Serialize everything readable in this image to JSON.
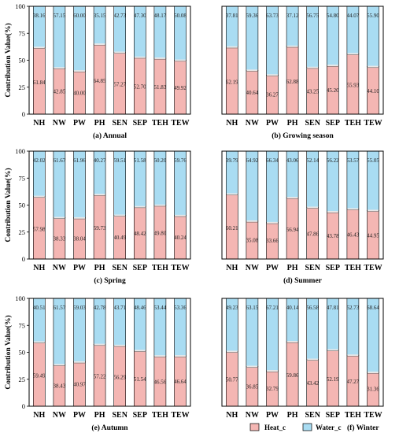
{
  "colors": {
    "heat": "#f4b6b3",
    "water": "#a9dcf2",
    "frame": "#000000",
    "seam": "#e8e8e8"
  },
  "legend": {
    "heat_label": "Heat_c",
    "water_label": "Water_c"
  },
  "chart_data": [
    {
      "type": "bar",
      "stacked": true,
      "title": "(a) Annual",
      "ylabel": "Contribution Value(%)",
      "ylim": [
        0,
        100
      ],
      "yticks": [
        0,
        25,
        50,
        75,
        100
      ],
      "categories": [
        "NH",
        "NW",
        "PW",
        "PH",
        "SEN",
        "SEP",
        "TEH",
        "TEW"
      ],
      "series": [
        {
          "name": "Heat_c",
          "values": [
            61.84,
            42.85,
            40.0,
            64.85,
            57.27,
            52.7,
            51.83,
            49.92
          ]
        },
        {
          "name": "Water_c",
          "values": [
            38.16,
            57.15,
            60.0,
            35.15,
            42.73,
            47.3,
            48.17,
            50.08
          ]
        }
      ]
    },
    {
      "type": "bar",
      "stacked": true,
      "title": "(b) Growing season",
      "ylim": [
        0,
        100
      ],
      "categories": [
        "NH",
        "NW",
        "PW",
        "PH",
        "SEN",
        "SEP",
        "TEH",
        "TEW"
      ],
      "series": [
        {
          "name": "Heat_c",
          "values": [
            62.19,
            40.64,
            36.27,
            62.88,
            43.25,
            45.2,
            55.93,
            44.1
          ]
        },
        {
          "name": "Water_c",
          "values": [
            37.81,
            59.36,
            63.73,
            37.12,
            56.75,
            54.8,
            44.07,
            55.9
          ]
        }
      ]
    },
    {
      "type": "bar",
      "stacked": true,
      "title": "(c) Spring",
      "ylabel": "Contribution Value(%)",
      "ylim": [
        0,
        100
      ],
      "yticks": [
        0,
        25,
        50,
        75,
        100
      ],
      "categories": [
        "NH",
        "NW",
        "PW",
        "PH",
        "SEN",
        "SEP",
        "TEH",
        "TEW"
      ],
      "series": [
        {
          "name": "Heat_c",
          "values": [
            57.98,
            38.33,
            38.04,
            59.73,
            40.49,
            48.42,
            49.8,
            40.24
          ]
        },
        {
          "name": "Water_c",
          "values": [
            42.02,
            61.67,
            61.96,
            40.27,
            59.51,
            51.58,
            50.2,
            59.76
          ]
        }
      ]
    },
    {
      "type": "bar",
      "stacked": true,
      "title": "(d) Summer",
      "ylim": [
        0,
        100
      ],
      "categories": [
        "NH",
        "NW",
        "PW",
        "PH",
        "SEN",
        "SEP",
        "TEH",
        "TEW"
      ],
      "series": [
        {
          "name": "Heat_c",
          "values": [
            60.21,
            35.08,
            33.66,
            56.94,
            47.86,
            43.78,
            46.43,
            44.95
          ]
        },
        {
          "name": "Water_c",
          "values": [
            39.79,
            64.92,
            66.34,
            43.06,
            52.14,
            56.22,
            53.57,
            55.05
          ]
        }
      ]
    },
    {
      "type": "bar",
      "stacked": true,
      "title": "(e) Autumn",
      "ylabel": "Contribution Value(%)",
      "ylim": [
        0,
        100
      ],
      "yticks": [
        0,
        25,
        50,
        75,
        100
      ],
      "categories": [
        "NH",
        "NW",
        "PW",
        "PH",
        "SEN",
        "SEP",
        "TEH",
        "TEW"
      ],
      "series": [
        {
          "name": "Heat_c",
          "values": [
            59.49,
            38.43,
            40.97,
            57.22,
            56.29,
            51.54,
            46.56,
            46.64
          ]
        },
        {
          "name": "Water_c",
          "values": [
            40.51,
            61.57,
            59.03,
            42.78,
            43.71,
            48.46,
            53.44,
            53.36
          ]
        }
      ]
    },
    {
      "type": "bar",
      "stacked": true,
      "title": "(f) Winter",
      "ylim": [
        0,
        100
      ],
      "categories": [
        "NH",
        "NW",
        "PW",
        "PH",
        "SEN",
        "SEP",
        "TEH",
        "TEW"
      ],
      "series": [
        {
          "name": "Heat_c",
          "values": [
            50.77,
            36.85,
            32.79,
            59.86,
            43.42,
            52.19,
            47.27,
            31.36
          ]
        },
        {
          "name": "Water_c",
          "values": [
            49.23,
            63.15,
            67.21,
            40.14,
            56.58,
            47.81,
            52.73,
            68.64
          ]
        }
      ]
    }
  ]
}
